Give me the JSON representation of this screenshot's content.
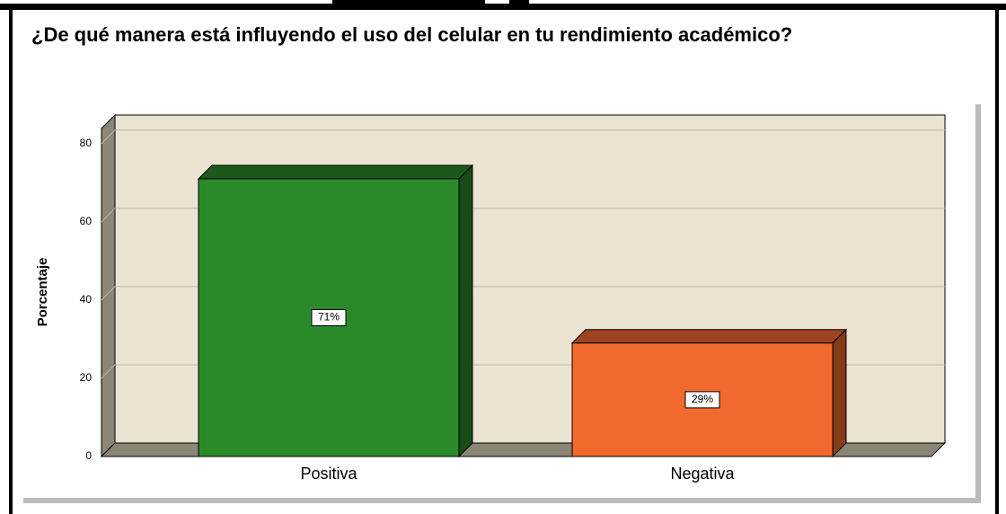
{
  "chart_data": {
    "type": "bar",
    "title": "¿De qué manera está influyendo el uso del celular en tu rendimiento académico?",
    "ylabel": "Porcentaje",
    "categories": [
      "Positiva",
      "Negativa"
    ],
    "values": [
      71,
      29
    ],
    "value_labels": [
      "71%",
      "29%"
    ],
    "colors": [
      "#2a8a2a",
      "#f2692e"
    ],
    "ylim": [
      0,
      85
    ],
    "yticks": [
      0,
      20,
      40,
      60,
      80
    ],
    "grid": true
  }
}
